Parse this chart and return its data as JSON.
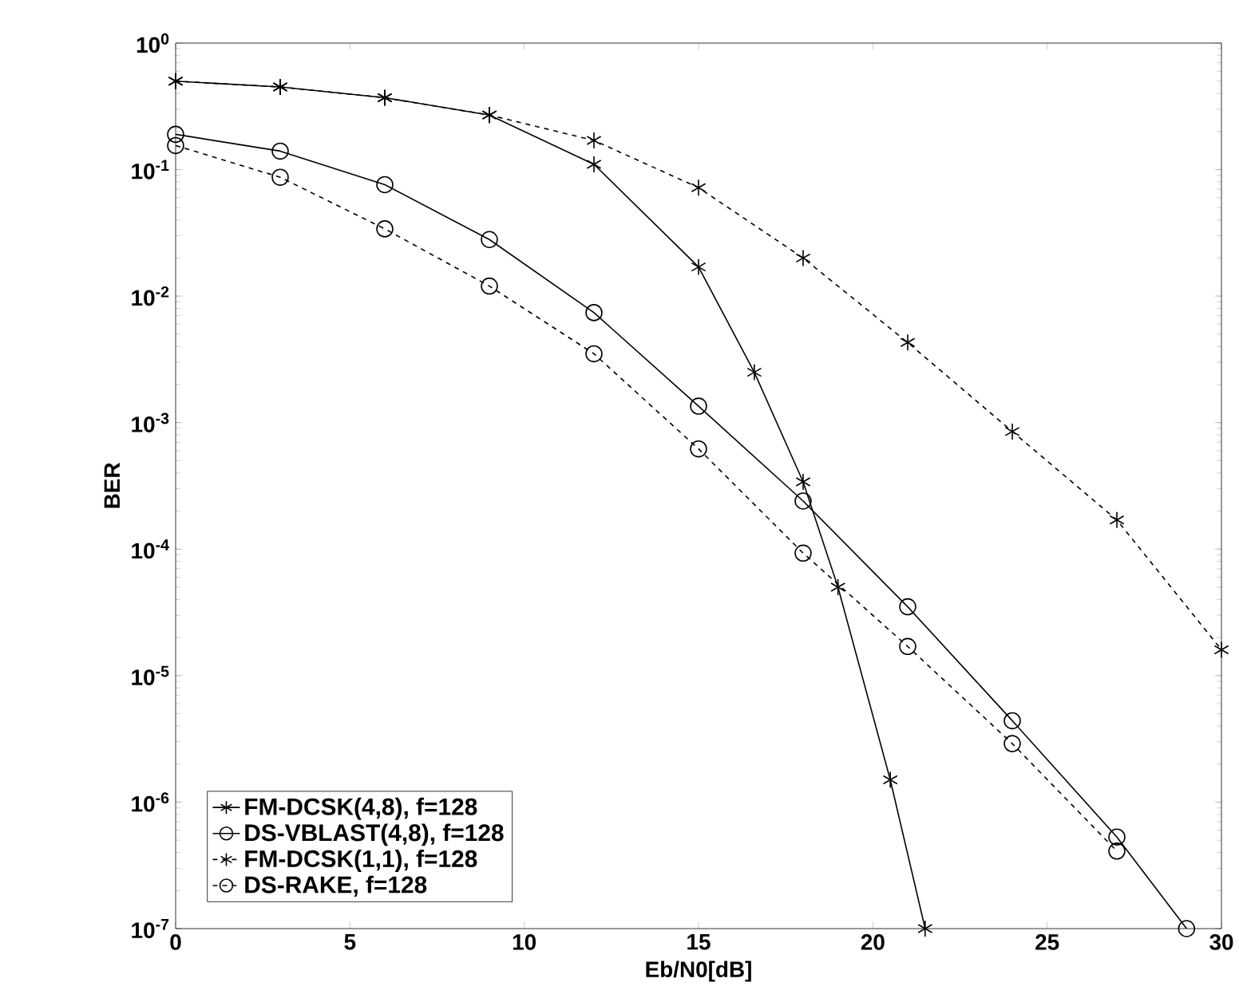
{
  "chart_data": {
    "type": "line",
    "xlabel": "Eb/N0[dB]",
    "ylabel": "BER",
    "log": "y",
    "xlim": [
      0,
      30
    ],
    "ylim": [
      1e-07,
      1
    ],
    "xticks": [
      0,
      5,
      10,
      15,
      20,
      25,
      30
    ],
    "yticks": [
      {
        "value": 1e-07,
        "label": "10$^{-7}$"
      },
      {
        "value": 1e-06,
        "label": "10$^{-6}$"
      },
      {
        "value": 1e-05,
        "label": "10$^{-5}$"
      },
      {
        "value": 0.0001,
        "label": "10$^{-4}$"
      },
      {
        "value": 0.001,
        "label": "10$^{-3}$"
      },
      {
        "value": 0.01,
        "label": "10$^{-2}$"
      },
      {
        "value": 0.1,
        "label": "10$^{-1}$"
      },
      {
        "value": 1,
        "label": "10$^{0}$"
      }
    ],
    "grid": false,
    "legend": "bottom left",
    "series": [
      {
        "name": "FM-DCSK(4,8), f=128",
        "color": "#000000",
        "marker": "cross",
        "line_style": "solid",
        "x": [
          0,
          3,
          6,
          9,
          12,
          15,
          16.6,
          18,
          19,
          20.5,
          21.5
        ],
        "values": [
          0.5,
          0.45,
          0.37,
          0.27,
          0.11,
          0.017,
          0.0025,
          0.00034,
          5e-05,
          1.5e-06,
          1e-07
        ]
      },
      {
        "name": "DS-VBLAST(4,8), f=128",
        "color": "#000000",
        "marker": "circle",
        "line_style": "solid",
        "x": [
          0,
          3,
          6,
          9,
          12,
          15,
          18,
          21,
          24,
          27,
          29
        ],
        "values": [
          0.19,
          0.14,
          0.076,
          0.028,
          0.0074,
          0.00135,
          0.00024,
          3.5e-05,
          4.4e-06,
          5.3e-07,
          1e-07
        ]
      },
      {
        "name": "FM-DCSK(1,1), f=128",
        "color": "#000000",
        "marker": "cross",
        "line_style": "dashed",
        "x": [
          0,
          3,
          6,
          9,
          12,
          15,
          18,
          21,
          24,
          27,
          30
        ],
        "values": [
          0.5,
          0.45,
          0.37,
          0.27,
          0.17,
          0.072,
          0.02,
          0.0043,
          0.00085,
          0.00017,
          1.6e-05
        ]
      },
      {
        "name": "DS-RAKE, f=128",
        "color": "#000000",
        "marker": "circle",
        "line_style": "dashed",
        "x": [
          0,
          3,
          6,
          9,
          12,
          15,
          18,
          21,
          24,
          27
        ],
        "values": [
          0.155,
          0.087,
          0.034,
          0.012,
          0.0035,
          0.00062,
          9.3e-05,
          1.7e-05,
          2.9e-06,
          4.1e-07
        ]
      }
    ]
  }
}
